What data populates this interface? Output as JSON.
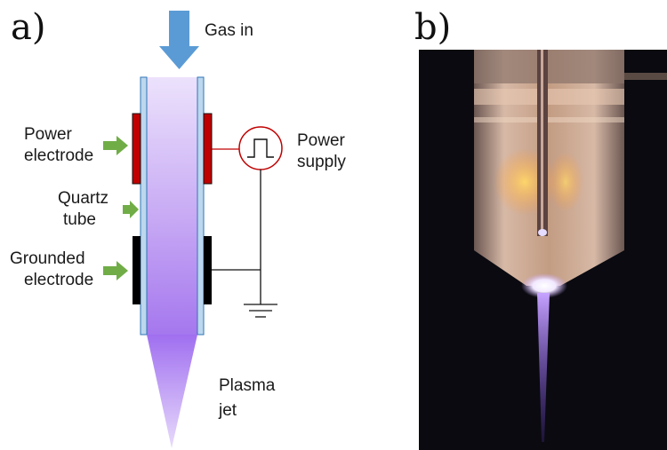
{
  "panel_a": {
    "label": "a)",
    "gas_in": "Gas in",
    "power_electrode": [
      "Power",
      "electrode"
    ],
    "quartz_tube": [
      "Quartz",
      "tube"
    ],
    "grounded_electrode": [
      "Grounded",
      "electrode"
    ],
    "power_supply": [
      "Power",
      "supply"
    ],
    "plasma_jet": [
      "Plasma",
      "jet"
    ]
  },
  "panel_b": {
    "label": "b)"
  },
  "colors": {
    "gas_arrow": "#5b9bd5",
    "tube_wall": "#bdd7ee",
    "power_electrode": "#c00000",
    "grounded_electrode": "#000000",
    "pointer_arrow": "#70ad47",
    "supply_circle": "#c00000",
    "plasma": "#b68cf2"
  }
}
